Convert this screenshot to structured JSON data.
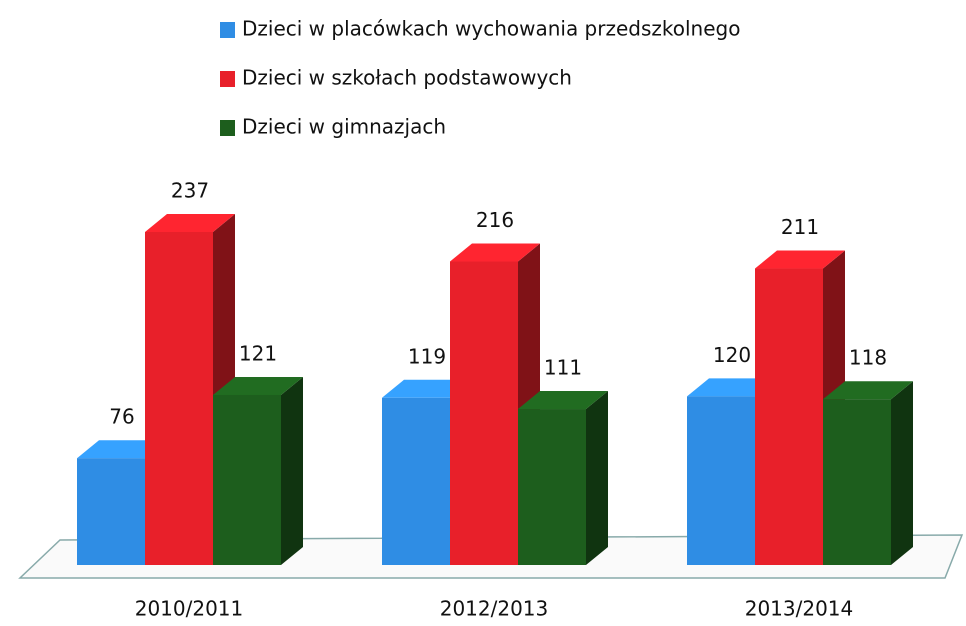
{
  "chart_data": {
    "type": "bar3d",
    "categories": [
      "2010/2011",
      "2012/2013",
      "2013/2014"
    ],
    "series": [
      {
        "name": "Dzieci w placówkach wychowania przedszkolnego",
        "color": "#2f8de4",
        "values": [
          76,
          119,
          120
        ]
      },
      {
        "name": "Dzieci w szkołach podstawowych",
        "color": "#e8202a",
        "values": [
          237,
          216,
          211
        ]
      },
      {
        "name": "Dzieci w gimnazjach",
        "color": "#1d5e1d",
        "values": [
          121,
          111,
          118
        ]
      }
    ],
    "legend": "top"
  }
}
